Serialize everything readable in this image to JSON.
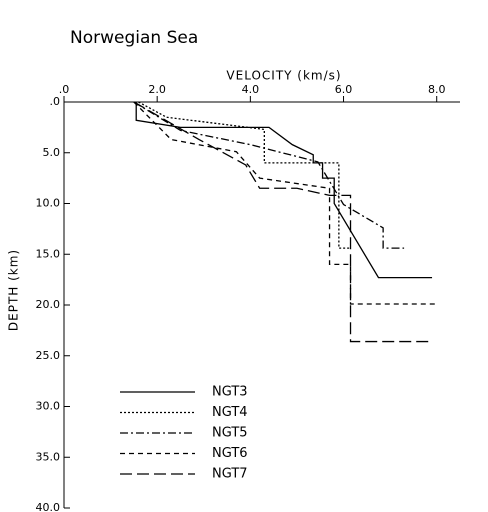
{
  "chart_data": {
    "type": "line",
    "title": "Norwegian Sea",
    "xlabel": "VELOCITY (km/s)",
    "ylabel": "DEPTH (km)",
    "xlim": [
      0,
      8.5
    ],
    "ylim": [
      40,
      0
    ],
    "xticks": [
      {
        "value": 0,
        "label": ".0"
      },
      {
        "value": 2,
        "label": "2.0"
      },
      {
        "value": 4,
        "label": "4.0"
      },
      {
        "value": 6,
        "label": "6.0"
      },
      {
        "value": 8,
        "label": "8.0"
      }
    ],
    "yticks": [
      {
        "value": 0,
        "label": ".0"
      },
      {
        "value": 5,
        "label": "5.0"
      },
      {
        "value": 10,
        "label": "10.0"
      },
      {
        "value": 15,
        "label": "15.0"
      },
      {
        "value": 20,
        "label": "20.0"
      },
      {
        "value": 25,
        "label": "25.0"
      },
      {
        "value": 30,
        "label": "30.0"
      },
      {
        "value": 35,
        "label": "35.0"
      },
      {
        "value": 40,
        "label": "40.0"
      }
    ],
    "series": [
      {
        "name": "NGT3",
        "color": "#000000",
        "style": "solid",
        "x": [
          1.55,
          1.55,
          2.5,
          3.0,
          4.4,
          4.9,
          5.35,
          5.35,
          5.55,
          5.55,
          5.8,
          5.8,
          6.75,
          7.9
        ],
        "values": [
          0,
          1.8,
          2.5,
          2.5,
          2.5,
          4.2,
          5.2,
          6.0,
          6.0,
          7.5,
          7.5,
          10.0,
          17.3,
          17.3
        ]
      },
      {
        "name": "NGT4",
        "color": "#000000",
        "style": "dotted",
        "x": [
          1.6,
          2.2,
          4.3,
          4.3,
          5.9,
          5.9,
          6.15
        ],
        "values": [
          0,
          1.5,
          2.7,
          6.0,
          6.0,
          14.4,
          14.4
        ]
      },
      {
        "name": "NGT5",
        "color": "#000000",
        "style": "dashdot",
        "x": [
          1.5,
          2.5,
          4.0,
          5.45,
          6.0,
          6.85,
          6.85,
          7.3
        ],
        "values": [
          0,
          2.8,
          4.2,
          5.9,
          10.1,
          12.4,
          14.4,
          14.4
        ]
      },
      {
        "name": "NGT6",
        "color": "#000000",
        "style": "shortdash",
        "x": [
          1.5,
          2.3,
          3.7,
          4.2,
          5.7,
          5.7,
          6.15,
          6.15,
          8.0
        ],
        "values": [
          0,
          3.7,
          4.9,
          7.5,
          8.5,
          16.0,
          16.0,
          19.9,
          19.9
        ]
      },
      {
        "name": "NGT7",
        "color": "#000000",
        "style": "longdash",
        "x": [
          1.5,
          2.9,
          3.9,
          4.2,
          5.0,
          5.7,
          6.15,
          6.15,
          7.9
        ],
        "values": [
          0,
          3.7,
          6.2,
          8.5,
          8.5,
          9.2,
          9.2,
          23.6,
          23.6
        ]
      }
    ]
  }
}
